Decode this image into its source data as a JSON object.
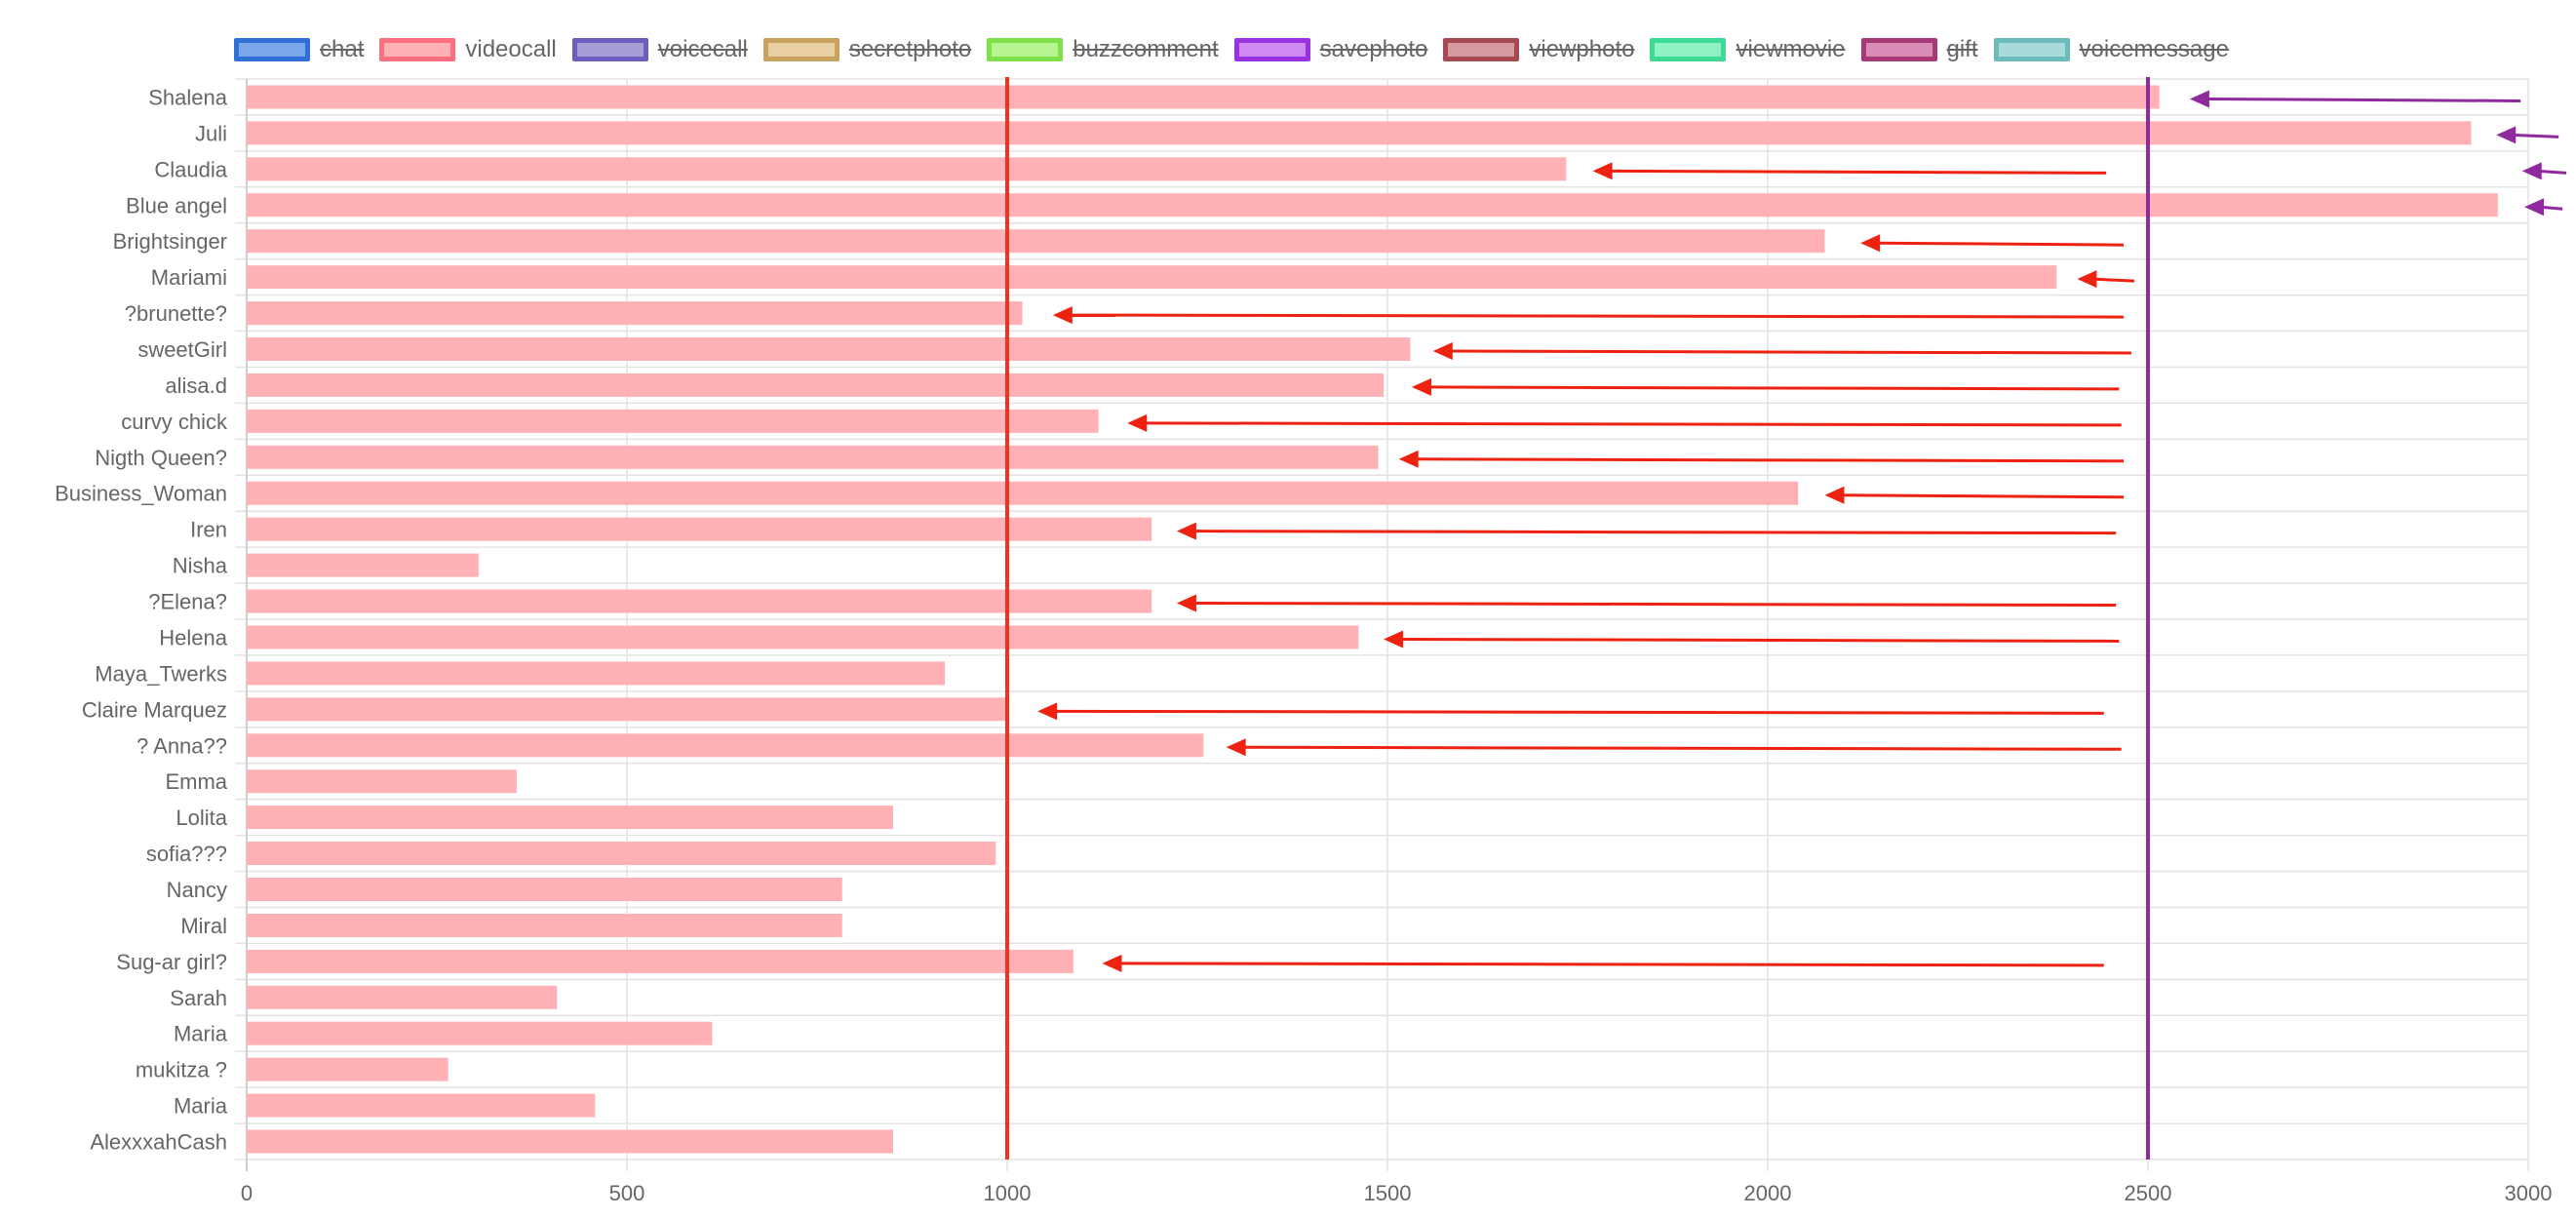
{
  "legend": [
    {
      "label": "chat",
      "fill": "#7aa6ea",
      "border": "#2f6fd6",
      "hidden": true
    },
    {
      "label": "videocall",
      "fill": "#ffb1b6",
      "border": "#ff6f7e",
      "hidden": false
    },
    {
      "label": "voicecall",
      "fill": "#a69fd6",
      "border": "#6d5fc0",
      "hidden": true
    },
    {
      "label": "secretphoto",
      "fill": "#e9cfa3",
      "border": "#c9a25d",
      "hidden": true
    },
    {
      "label": "buzzcomment",
      "fill": "#b6f58f",
      "border": "#7fe04a",
      "hidden": true
    },
    {
      "label": "savephoto",
      "fill": "#cf8af2",
      "border": "#9b32e0",
      "hidden": true
    },
    {
      "label": "viewphoto",
      "fill": "#d49a9f",
      "border": "#a8484f",
      "hidden": true
    },
    {
      "label": "viewmovie",
      "fill": "#8ff2c4",
      "border": "#3ed995",
      "hidden": true
    },
    {
      "label": "gift",
      "fill": "#d88cb6",
      "border": "#a83a78",
      "hidden": true
    },
    {
      "label": "voicemessage",
      "fill": "#a8dada",
      "border": "#6cbcbc",
      "hidden": true
    }
  ],
  "chart_data": {
    "type": "bar",
    "orientation": "horizontal",
    "categories": [
      "Shalena",
      "Juli",
      "Claudia",
      "Blue angel",
      "Brightsinger",
      "Mariami",
      "?brunette?",
      "sweetGirl",
      "alisa.d",
      "curvy chick",
      "Nigth Queen?",
      "Business_Woman",
      "Iren",
      "Nisha",
      "?Elena?",
      "Helena",
      "Maya_Twerks",
      "Claire Marquez",
      "? Anna??",
      "Emma",
      "Lolita",
      "sofia???",
      "Nancy",
      "Miral",
      "Sug-ar girl?",
      "Sarah",
      "Maria",
      "mukitza ?",
      "Maria",
      "AlexxxahCash"
    ],
    "series": [
      {
        "name": "videocall",
        "color": "#ffb1b6",
        "values": [
          2515,
          2925,
          1735,
          2960,
          2075,
          2380,
          1020,
          1530,
          1495,
          1120,
          1488,
          2040,
          1190,
          305,
          1190,
          1462,
          918,
          1000,
          1258,
          355,
          850,
          985,
          783,
          783,
          1087,
          408,
          612,
          265,
          458,
          850
        ]
      }
    ],
    "xlim": [
      0,
      3000
    ],
    "xticks": [
      0,
      500,
      1000,
      1500,
      2000,
      2500,
      3000
    ],
    "grid": true,
    "legend_position": "top",
    "reference_lines": [
      {
        "x": 1000,
        "color": "#ee3322"
      },
      {
        "x": 2500,
        "color": "#8e2a9c"
      }
    ],
    "arrows": [
      {
        "row": 0,
        "from": 2990,
        "to": 2555,
        "color": "#8e2a9c"
      },
      {
        "row": 1,
        "from": 3040,
        "to": 2958,
        "color": "#8e2a9c"
      },
      {
        "row": 2,
        "from": 3050,
        "to": 2992,
        "color": "#8e2a9c"
      },
      {
        "row": 2,
        "from": 2445,
        "to": 1770,
        "color": "#ee2211"
      },
      {
        "row": 3,
        "from": 3045,
        "to": 2995,
        "color": "#8e2a9c"
      },
      {
        "row": 4,
        "from": 2468,
        "to": 2122,
        "color": "#ee2211"
      },
      {
        "row": 5,
        "from": 2482,
        "to": 2407,
        "color": "#ee2211"
      },
      {
        "row": 6,
        "from": 2468,
        "to": 1060,
        "color": "#ee2211"
      },
      {
        "row": 7,
        "from": 2478,
        "to": 1560,
        "color": "#ee2211"
      },
      {
        "row": 8,
        "from": 2462,
        "to": 1532,
        "color": "#ee2211"
      },
      {
        "row": 9,
        "from": 2465,
        "to": 1158,
        "color": "#ee2211"
      },
      {
        "row": 10,
        "from": 2468,
        "to": 1515,
        "color": "#ee2211"
      },
      {
        "row": 11,
        "from": 2468,
        "to": 2075,
        "color": "#ee2211"
      },
      {
        "row": 12,
        "from": 2458,
        "to": 1223,
        "color": "#ee2211"
      },
      {
        "row": 14,
        "from": 2458,
        "to": 1223,
        "color": "#ee2211"
      },
      {
        "row": 15,
        "from": 2462,
        "to": 1495,
        "color": "#ee2211"
      },
      {
        "row": 17,
        "from": 2442,
        "to": 1040,
        "color": "#ee2211"
      },
      {
        "row": 18,
        "from": 2465,
        "to": 1288,
        "color": "#ee2211"
      },
      {
        "row": 24,
        "from": 2442,
        "to": 1125,
        "color": "#ee2211"
      }
    ]
  }
}
